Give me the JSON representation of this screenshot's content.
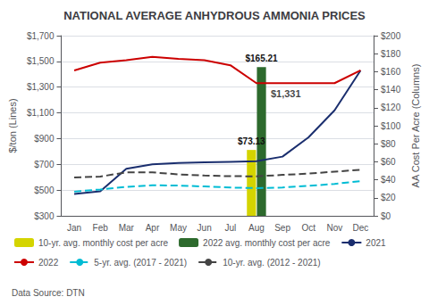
{
  "chart_data": {
    "type": "line",
    "title": "NATIONAL AVERAGE ANHYDROUS AMMONIA PRICES",
    "ylabel": "$/ton (Lines)",
    "y2label": "AA Cost Per Acre (Columns)",
    "source": "Data Source: DTN",
    "categories": [
      "Jan",
      "Feb",
      "Mar",
      "Apr",
      "May",
      "Jun",
      "Jul",
      "Aug",
      "Sep",
      "Oct",
      "Nov",
      "Dec"
    ],
    "ylim": [
      300,
      1700
    ],
    "yticks": [
      {
        "value": 300,
        "label": "$300"
      },
      {
        "value": 500,
        "label": "$500"
      },
      {
        "value": 700,
        "label": "$700"
      },
      {
        "value": 900,
        "label": "$900"
      },
      {
        "value": 1100,
        "label": "$1,100"
      },
      {
        "value": 1300,
        "label": "$1,300"
      },
      {
        "value": 1500,
        "label": "$1,500"
      },
      {
        "value": 1700,
        "label": "$1,700"
      }
    ],
    "y2lim": [
      0,
      200
    ],
    "y2ticks": [
      {
        "value": 0,
        "label": "$0"
      },
      {
        "value": 20,
        "label": "$20"
      },
      {
        "value": 40,
        "label": "$40"
      },
      {
        "value": 60,
        "label": "$60"
      },
      {
        "value": 80,
        "label": "$80"
      },
      {
        "value": 100,
        "label": "$100"
      },
      {
        "value": 120,
        "label": "$120"
      },
      {
        "value": 140,
        "label": "$140"
      },
      {
        "value": 160,
        "label": "$160"
      },
      {
        "value": 180,
        "label": "$180"
      },
      {
        "value": 200,
        "label": "$200"
      }
    ],
    "grid": true,
    "legend": "lower left",
    "series": [
      {
        "name": "10-yr. avg. monthly cost per acre",
        "type": "bar",
        "axis": "y2",
        "color": "#d4d400",
        "data_labels": true,
        "values": [
          null,
          null,
          null,
          null,
          null,
          null,
          null,
          73.13,
          null,
          null,
          null,
          null
        ],
        "value_labels": [
          null,
          null,
          null,
          null,
          null,
          null,
          null,
          "$73.13",
          null,
          null,
          null,
          null
        ]
      },
      {
        "name": "2022 avg. monthly cost per acre",
        "type": "bar",
        "axis": "y2",
        "color": "#2d6a2d",
        "data_labels": true,
        "values": [
          null,
          null,
          null,
          null,
          null,
          null,
          null,
          165.21,
          null,
          null,
          null,
          null
        ],
        "value_labels": [
          null,
          null,
          null,
          null,
          null,
          null,
          null,
          "$165.21",
          null,
          null,
          null,
          null
        ]
      },
      {
        "name": "2021",
        "type": "line",
        "color": "#1a2e6e",
        "line_style": "solid",
        "values": [
          470,
          490,
          665,
          700,
          710,
          715,
          720,
          725,
          760,
          910,
          1120,
          1430
        ]
      },
      {
        "name": "2022",
        "type": "line",
        "color": "#cc0000",
        "line_style": "solid",
        "values": [
          1430,
          1490,
          1510,
          1535,
          1520,
          1510,
          1470,
          1331,
          1331,
          1331,
          1331,
          1430
        ]
      },
      {
        "name": "5-yr. avg. (2017 - 2021)",
        "type": "line",
        "color": "#00bcd4",
        "line_style": "dashed",
        "values": [
          488,
          505,
          525,
          538,
          535,
          528,
          520,
          515,
          520,
          533,
          548,
          570
        ]
      },
      {
        "name": "10-yr. avg. (2012 - 2021)",
        "type": "line",
        "color": "#444444",
        "line_style": "dashed",
        "values": [
          598,
          605,
          638,
          638,
          622,
          613,
          608,
          607,
          618,
          628,
          643,
          658
        ]
      }
    ],
    "annotations": [
      {
        "text": "$1,331",
        "x": "Aug",
        "y": 1331
      }
    ]
  }
}
